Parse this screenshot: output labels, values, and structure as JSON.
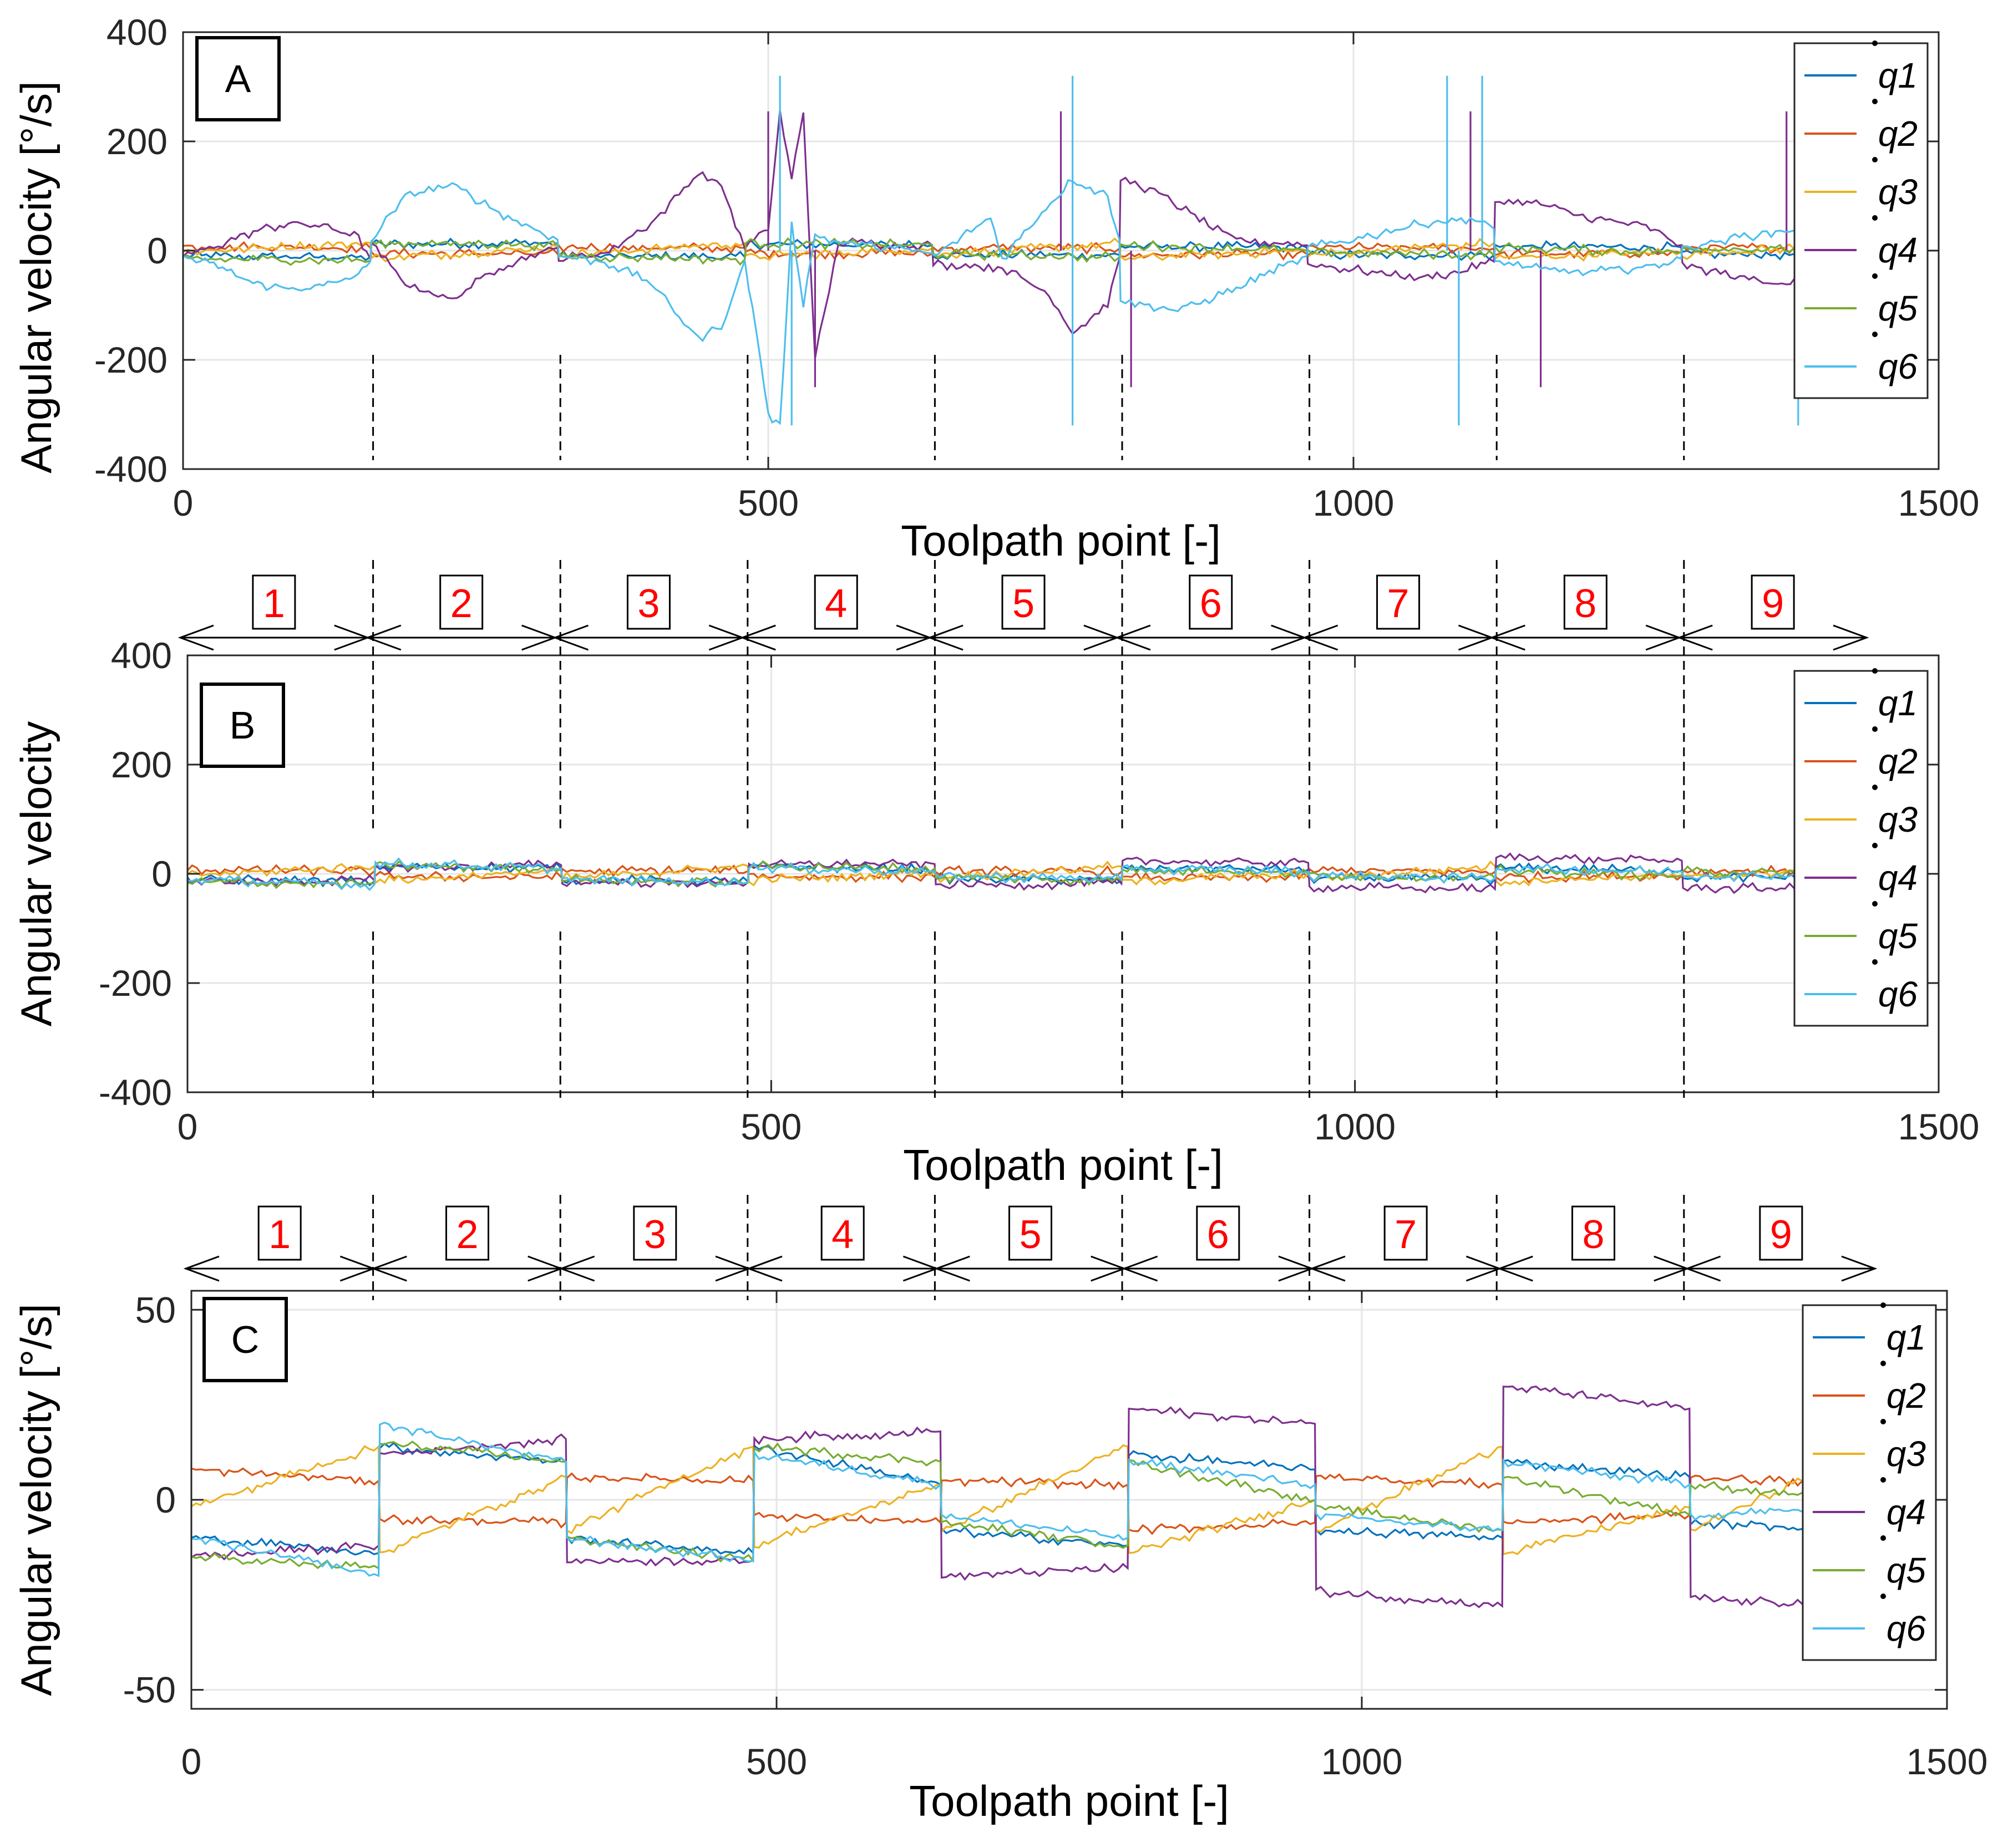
{
  "figure": {
    "x_label": "Toolpath point [-]",
    "y_label": "Angular velocity [°/s]",
    "colors": {
      "q1": "#0072BD",
      "q2": "#D95319",
      "q3": "#EDB120",
      "q4": "#7E2F8E",
      "q5": "#77AC30",
      "q6": "#4DBEEE",
      "segment_label": "#ff0000"
    },
    "segments": {
      "labels": [
        "1",
        "2",
        "3",
        "4",
        "5",
        "6",
        "7",
        "8",
        "9"
      ],
      "boundaries": [
        0,
        160,
        320,
        480,
        640,
        800,
        960,
        1120,
        1280,
        1440
      ]
    }
  },
  "chart_data": [
    {
      "id": "A",
      "type": "line",
      "panel_label": "A",
      "xlabel": "Toolpath point [-]",
      "ylabel": "Angular velocity [°/s]",
      "xlim": [
        0,
        1500
      ],
      "ylim": [
        -400,
        400
      ],
      "x_ticks": [
        0,
        500,
        1000,
        1500
      ],
      "x_tick_labels": [
        "0",
        "500",
        "1000",
        "1500"
      ],
      "y_ticks": [
        -400,
        -200,
        0,
        200,
        400
      ],
      "y_tick_labels": [
        "-400",
        "-200",
        "0",
        "200",
        "400"
      ],
      "grid": true,
      "legend": {
        "position": "top-right",
        "entries": [
          "q1",
          "q2",
          "q3",
          "q4",
          "q5",
          "q6"
        ]
      },
      "series": [
        {
          "name": "q1",
          "x": [
            0,
            160,
            161,
            320,
            321,
            480,
            481,
            640,
            641,
            800,
            801,
            960,
            961,
            1120,
            1121,
            1280,
            1281,
            1440
          ],
          "values": [
            -10,
            -12,
            12,
            14,
            -10,
            -12,
            12,
            10,
            -8,
            -8,
            8,
            6,
            -8,
            -8,
            8,
            6,
            -6,
            -8
          ]
        },
        {
          "name": "q2",
          "x": [
            0,
            160,
            161,
            320,
            321,
            480,
            481,
            640,
            641,
            800,
            801,
            960,
            961,
            1120,
            1121,
            1280,
            1281,
            1440
          ],
          "values": [
            8,
            5,
            -5,
            -6,
            6,
            5,
            -4,
            -6,
            5,
            4,
            -8,
            -6,
            6,
            4,
            -6,
            -4,
            6,
            4
          ]
        },
        {
          "name": "q3",
          "x": [
            0,
            160,
            161,
            320,
            321,
            480,
            481,
            640,
            641,
            800,
            801,
            960,
            961,
            1120,
            1121,
            1280,
            1281,
            1440
          ],
          "values": [
            -2,
            14,
            -14,
            6,
            -8,
            14,
            -12,
            4,
            -8,
            14,
            -14,
            0,
            -8,
            14,
            -14,
            -2,
            -8,
            14
          ]
        },
        {
          "name": "q4",
          "x": [
            0,
            30,
            60,
            90,
            120,
            150,
            160,
            161,
            190,
            230,
            270,
            320,
            321,
            360,
            400,
            440,
            460,
            480,
            500,
            510,
            520,
            530,
            540,
            560,
            640,
            641,
            700,
            740,
            760,
            790,
            800,
            801,
            830,
            880,
            900,
            960,
            961,
            1000,
            1060,
            1090,
            1120,
            1121,
            1160,
            1200,
            1250,
            1280,
            1281,
            1330,
            1370,
            1380,
            1440
          ],
          "values": [
            -10,
            10,
            35,
            50,
            45,
            25,
            -15,
            10,
            -60,
            -90,
            -30,
            5,
            -15,
            -5,
            50,
            140,
            120,
            5,
            40,
            255,
            130,
            255,
            -200,
            15,
            10,
            -25,
            -30,
            -80,
            -150,
            -100,
            -15,
            130,
            110,
            40,
            20,
            10,
            -25,
            -35,
            -50,
            -40,
            -20,
            90,
            85,
            60,
            45,
            10,
            -25,
            -50,
            -60,
            -50,
            -30
          ],
          "spikes": [
            [
              500,
              255
            ],
            [
              540,
              -250
            ],
            [
              750,
              255
            ],
            [
              810,
              -250
            ],
            [
              1100,
              255
            ],
            [
              1160,
              -250
            ],
            [
              1370,
              255
            ]
          ]
        },
        {
          "name": "q5",
          "x": [
            0,
            160,
            161,
            320,
            321,
            480,
            481,
            640,
            641,
            800,
            801,
            960,
            961,
            1120,
            1121,
            1280,
            1281,
            1440
          ],
          "values": [
            -15,
            -18,
            15,
            10,
            -10,
            -16,
            14,
            10,
            -6,
            -12,
            10,
            0,
            -2,
            -8,
            6,
            -4,
            4,
            0
          ]
        },
        {
          "name": "q6",
          "x": [
            0,
            30,
            60,
            90,
            120,
            150,
            160,
            161,
            190,
            230,
            270,
            320,
            321,
            360,
            400,
            440,
            460,
            480,
            490,
            500,
            510,
            520,
            530,
            540,
            560,
            640,
            641,
            690,
            700,
            730,
            760,
            790,
            800,
            801,
            850,
            900,
            960,
            961,
            1000,
            1060,
            1100,
            1120,
            1121,
            1160,
            1200,
            1250,
            1280,
            1281,
            1330,
            1380,
            1440
          ],
          "values": [
            -10,
            -30,
            -60,
            -70,
            -65,
            -45,
            -20,
            20,
            100,
            120,
            70,
            20,
            -10,
            -20,
            -60,
            -160,
            -140,
            -20,
            -150,
            -300,
            -320,
            50,
            -100,
            30,
            15,
            -5,
            -10,
            60,
            -15,
            60,
            130,
            100,
            20,
            -90,
            -110,
            -70,
            -10,
            5,
            20,
            50,
            60,
            40,
            -20,
            -35,
            -40,
            -30,
            -15,
            5,
            25,
            40,
            35
          ],
          "spikes": [
            [
              510,
              320
            ],
            [
              520,
              -320
            ],
            [
              760,
              320
            ],
            [
              760,
              -320
            ],
            [
              1080,
              320
            ],
            [
              1090,
              -320
            ],
            [
              1110,
              320
            ],
            [
              1380,
              -320
            ]
          ]
        }
      ]
    },
    {
      "id": "B",
      "type": "line",
      "panel_label": "B",
      "xlabel": "Toolpath point [-]",
      "ylabel": "Angular velocity",
      "xlim": [
        0,
        1500
      ],
      "ylim": [
        -400,
        400
      ],
      "x_ticks": [
        0,
        500,
        1000,
        1500
      ],
      "x_tick_labels": [
        "0",
        "500",
        "1000",
        "1500"
      ],
      "y_ticks": [
        -400,
        -200,
        0,
        200,
        400
      ],
      "y_tick_labels": [
        "-400",
        "-200",
        "0",
        "200",
        "400"
      ],
      "grid": true,
      "legend": {
        "position": "top-right",
        "entries": [
          "q1",
          "q2",
          "q3",
          "q4",
          "q5",
          "q6"
        ]
      },
      "series": [
        {
          "name": "q1",
          "x": [
            0,
            160,
            161,
            320,
            321,
            480,
            481,
            640,
            641,
            800,
            801,
            960,
            961,
            1120,
            1121,
            1280,
            1281,
            1440
          ],
          "values": [
            -10,
            -14,
            14,
            10,
            -10,
            -14,
            14,
            8,
            -8,
            -12,
            12,
            8,
            -8,
            -10,
            10,
            6,
            -6,
            -8
          ]
        },
        {
          "name": "q2",
          "x": [
            0,
            160,
            161,
            320,
            321,
            480,
            481,
            640,
            641,
            800,
            801,
            960,
            961,
            1120,
            1121,
            1280,
            1281,
            1440
          ],
          "values": [
            8,
            5,
            -5,
            -6,
            6,
            5,
            -4,
            -6,
            5,
            4,
            -8,
            -6,
            6,
            4,
            -6,
            -4,
            6,
            4
          ]
        },
        {
          "name": "q3",
          "x": [
            0,
            160,
            161,
            320,
            321,
            480,
            481,
            640,
            641,
            800,
            801,
            960,
            961,
            1120,
            1121,
            1280,
            1281,
            1440
          ],
          "values": [
            -2,
            14,
            -14,
            6,
            -8,
            14,
            -12,
            4,
            -8,
            14,
            -14,
            0,
            -8,
            14,
            -14,
            -2,
            -8,
            14
          ]
        },
        {
          "name": "q4",
          "x": [
            0,
            160,
            161,
            320,
            321,
            480,
            481,
            640,
            641,
            800,
            801,
            960,
            961,
            1120,
            1121,
            1280,
            1281,
            1440
          ],
          "values": [
            -15,
            -12,
            12,
            16,
            -16,
            -16,
            16,
            18,
            -20,
            -18,
            24,
            20,
            -24,
            -28,
            30,
            24,
            -26,
            -28
          ]
        },
        {
          "name": "q5",
          "x": [
            0,
            160,
            161,
            320,
            321,
            480,
            481,
            640,
            641,
            800,
            801,
            960,
            961,
            1120,
            1121,
            1280,
            1281,
            1440
          ],
          "values": [
            -15,
            -18,
            15,
            10,
            -10,
            -16,
            14,
            10,
            -6,
            -12,
            10,
            0,
            -2,
            -8,
            6,
            -4,
            4,
            0
          ]
        },
        {
          "name": "q6",
          "x": [
            0,
            160,
            161,
            320,
            321,
            480,
            481,
            640,
            641,
            800,
            801,
            960,
            961,
            1120,
            1121,
            1280,
            1281,
            1440
          ],
          "values": [
            -10,
            -20,
            20,
            10,
            -10,
            -16,
            12,
            4,
            -4,
            -10,
            10,
            4,
            -4,
            -8,
            10,
            4,
            -4,
            -2
          ]
        }
      ]
    },
    {
      "id": "C",
      "type": "line",
      "panel_label": "C",
      "xlabel": "Toolpath point [-]",
      "ylabel": "Angular velocity [°/s]",
      "xlim": [
        0,
        1500
      ],
      "ylim": [
        -55,
        55
      ],
      "x_ticks": [
        0,
        500,
        1000,
        1500
      ],
      "x_tick_labels": [
        "0",
        "500",
        "1000",
        "1500"
      ],
      "y_ticks": [
        -50,
        0,
        50
      ],
      "y_tick_labels": [
        "-50",
        "0",
        "50"
      ],
      "grid": true,
      "legend": {
        "position": "top-right",
        "entries": [
          "q1",
          "q2",
          "q3",
          "q4",
          "q5",
          "q6"
        ]
      },
      "series": [
        {
          "name": "q1",
          "x": [
            0,
            160,
            161,
            320,
            321,
            480,
            481,
            640,
            641,
            800,
            801,
            960,
            961,
            1120,
            1121,
            1280,
            1281,
            1440
          ],
          "values": [
            -10,
            -14,
            14,
            10,
            -10,
            -14,
            14,
            4,
            -8,
            -12,
            12,
            8,
            -8,
            -10,
            10,
            6,
            -6,
            -8
          ]
        },
        {
          "name": "q2",
          "x": [
            0,
            160,
            161,
            320,
            321,
            480,
            481,
            640,
            641,
            800,
            801,
            960,
            961,
            1120,
            1121,
            1280,
            1281,
            1440
          ],
          "values": [
            8,
            5,
            -5,
            -6,
            6,
            5,
            -4,
            -6,
            5,
            4,
            -8,
            -6,
            6,
            4,
            -6,
            -4,
            6,
            4
          ]
        },
        {
          "name": "q3",
          "x": [
            0,
            160,
            161,
            320,
            321,
            480,
            481,
            640,
            641,
            800,
            801,
            960,
            961,
            1120,
            1121,
            1280,
            1281,
            1440
          ],
          "values": [
            -2,
            14,
            -14,
            6,
            -8,
            14,
            -12,
            4,
            -8,
            14,
            -14,
            0,
            -8,
            14,
            -14,
            -2,
            -8,
            14
          ]
        },
        {
          "name": "q4",
          "x": [
            0,
            160,
            161,
            320,
            321,
            480,
            481,
            640,
            641,
            800,
            801,
            960,
            961,
            1120,
            1121,
            1280,
            1281,
            1440
          ],
          "values": [
            -15,
            -12,
            12,
            16,
            -16,
            -16,
            16,
            18,
            -20,
            -18,
            24,
            20,
            -24,
            -28,
            30,
            24,
            -26,
            -28
          ]
        },
        {
          "name": "q5",
          "x": [
            0,
            160,
            161,
            320,
            321,
            480,
            481,
            640,
            641,
            800,
            801,
            960,
            961,
            1120,
            1121,
            1280,
            1281,
            1440
          ],
          "values": [
            -15,
            -18,
            15,
            10,
            -10,
            -16,
            14,
            10,
            -6,
            -12,
            10,
            0,
            -2,
            -8,
            6,
            -4,
            4,
            0
          ]
        },
        {
          "name": "q6",
          "x": [
            0,
            160,
            161,
            320,
            321,
            480,
            481,
            640,
            641,
            800,
            801,
            960,
            961,
            1120,
            1121,
            1280,
            1281,
            1440
          ],
          "values": [
            -10,
            -20,
            20,
            10,
            -10,
            -16,
            12,
            4,
            -4,
            -10,
            10,
            4,
            -4,
            -8,
            10,
            4,
            -4,
            -2
          ]
        }
      ]
    }
  ]
}
